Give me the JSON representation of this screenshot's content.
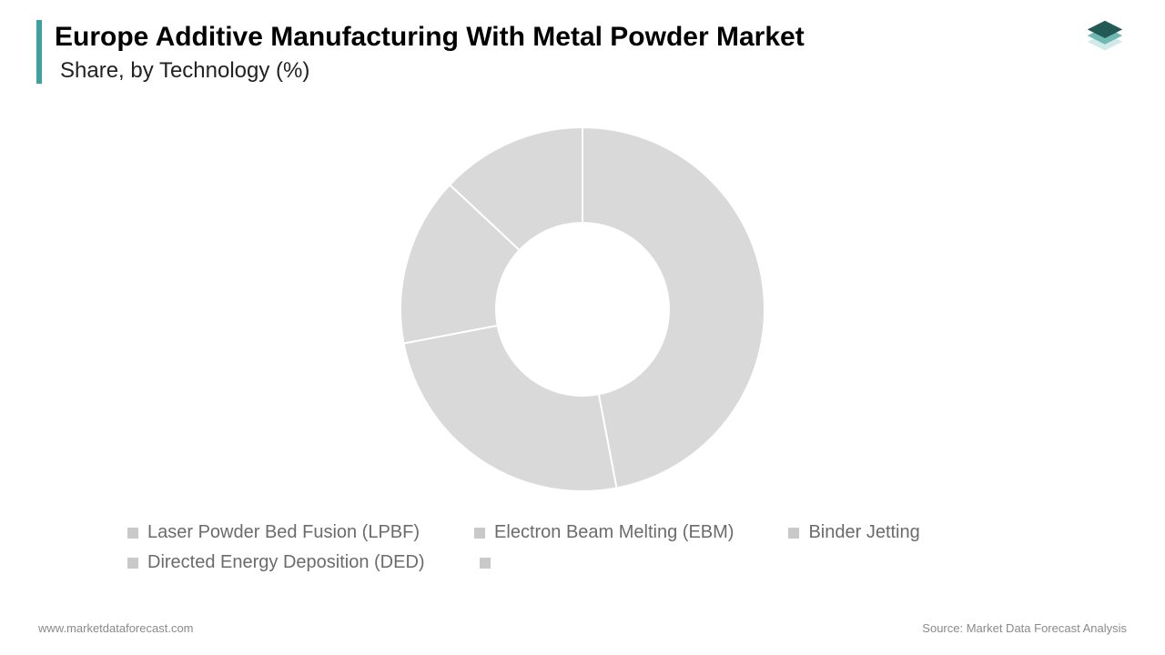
{
  "header": {
    "title": "Europe Additive Manufacturing With Metal Powder Market",
    "subtitle": "Share, by Technology (%)",
    "accent_color": "#3fa0a0",
    "title_color": "#000000",
    "title_fontsize": 30,
    "subtitle_fontsize": 24
  },
  "logo": {
    "layer_colors": [
      "#245a56",
      "#6fb9b4",
      "#cfeae7"
    ]
  },
  "chart": {
    "type": "donut",
    "outer_radius": 200,
    "inner_radius": 95,
    "background_color": "#ffffff",
    "gap_stroke_color": "#ffffff",
    "gap_stroke_width": 2,
    "slices": [
      {
        "label": "Laser Powder Bed Fusion (LPBF)",
        "value": 47,
        "color": "#d9d9d9"
      },
      {
        "label": "Electron Beam Melting (EBM)",
        "value": 25,
        "color": "#d9d9d9"
      },
      {
        "label": "Binder Jetting",
        "value": 15,
        "color": "#d9d9d9"
      },
      {
        "label": "Directed Energy Deposition (DED)",
        "value": 13,
        "color": "#d9d9d9"
      },
      {
        "label": "",
        "value": 0,
        "color": "#d9d9d9"
      }
    ]
  },
  "legend": {
    "marker_size": 12,
    "text_color": "#6b6b6b",
    "fontsize": 20,
    "marker_color": "#c9c9c9"
  },
  "footer": {
    "left": "www.marketdataforecast.com",
    "right": "Source: Market Data Forecast Analysis",
    "color": "#8a8a8a",
    "fontsize": 13
  }
}
